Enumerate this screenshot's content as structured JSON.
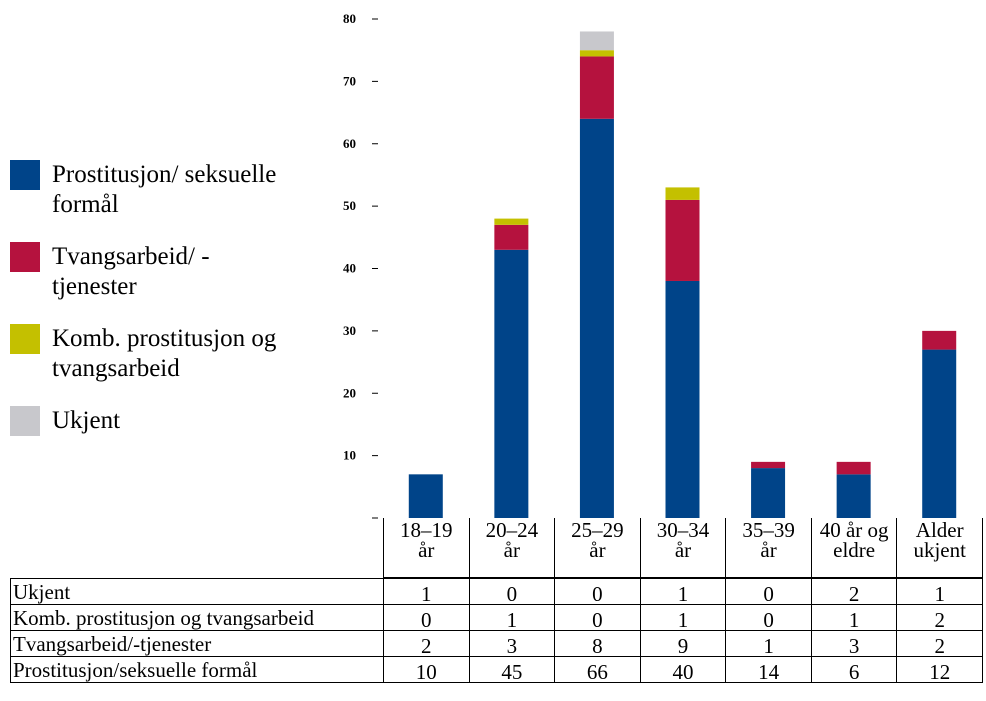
{
  "chart_data": {
    "type": "stacked_bar",
    "categories": [
      [
        "18–19",
        "år"
      ],
      [
        "20–24",
        "år"
      ],
      [
        "25–29",
        "år"
      ],
      [
        "30–34",
        "år"
      ],
      [
        "35–39",
        "år"
      ],
      [
        "40 år og",
        "eldre"
      ],
      [
        "Alder",
        "ukjent"
      ]
    ],
    "series": [
      {
        "name": "Prostitusjon/ seksuelle formål",
        "color": "#004489",
        "values": [
          7,
          43,
          64,
          38,
          8,
          7,
          27
        ]
      },
      {
        "name": "Tvangsarbeid/ -tjenester",
        "color": "#b5123e",
        "values": [
          0,
          4,
          10,
          13,
          1,
          2,
          3
        ]
      },
      {
        "name": "Komb. prostitusjon og tvangsarbeid",
        "color": "#c4c000",
        "values": [
          0,
          1,
          1,
          2,
          0,
          0,
          0
        ]
      },
      {
        "name": "Ukjent",
        "color": "#c8c8cc",
        "values": [
          0,
          0,
          3,
          0,
          0,
          0,
          0
        ]
      }
    ],
    "ylim": [
      0,
      80
    ],
    "yticks": [
      10,
      20,
      30,
      40,
      50,
      60,
      70,
      80
    ],
    "legend": "left"
  },
  "table": {
    "rows": [
      {
        "label": "Ukjent",
        "values": [
          1,
          0,
          0,
          1,
          0,
          2,
          1
        ]
      },
      {
        "label": "Komb. prostitusjon og tvangsarbeid",
        "values": [
          0,
          1,
          0,
          1,
          0,
          1,
          2
        ]
      },
      {
        "label": "Tvangsarbeid/-tjenester",
        "values": [
          2,
          3,
          8,
          9,
          1,
          3,
          2
        ]
      },
      {
        "label": "Prostitusjon/seksuelle formål",
        "values": [
          10,
          45,
          66,
          40,
          14,
          6,
          12
        ]
      }
    ]
  }
}
